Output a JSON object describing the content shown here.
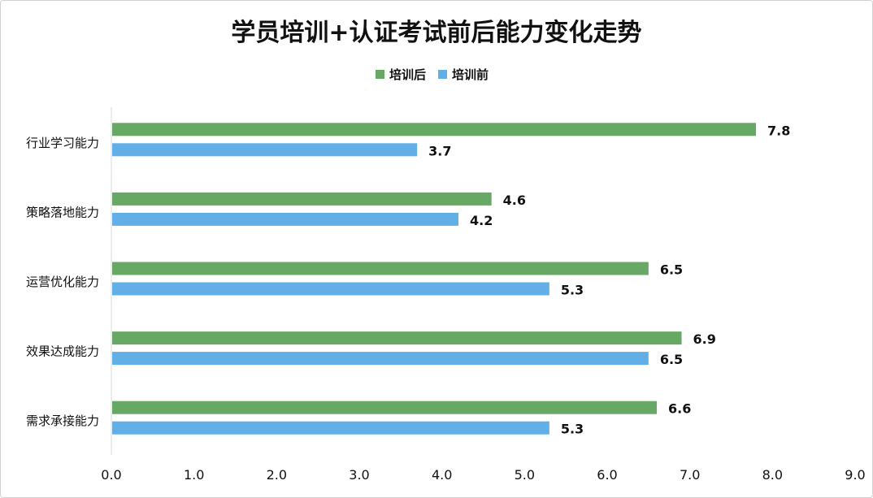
{
  "chart_data": {
    "type": "bar",
    "orientation": "horizontal",
    "title": "学员培训+认证考试前后能力变化走势",
    "categories": [
      "行业学习能力",
      "策略落地能力",
      "运营优化能力",
      "效果达成能力",
      "需求承接能力"
    ],
    "series": [
      {
        "name": "培训后",
        "color": "#67a865",
        "values": [
          7.8,
          4.6,
          6.5,
          6.9,
          6.6
        ]
      },
      {
        "name": "培训前",
        "color": "#62aee6",
        "values": [
          3.7,
          4.2,
          5.3,
          6.5,
          5.3
        ]
      }
    ],
    "xlim": [
      0,
      9
    ],
    "xticks": [
      "0.0",
      "1.0",
      "2.0",
      "3.0",
      "4.0",
      "5.0",
      "6.0",
      "7.0",
      "8.0",
      "9.0"
    ],
    "grid": false,
    "legend_position": "top",
    "xlabel": "",
    "ylabel": ""
  }
}
